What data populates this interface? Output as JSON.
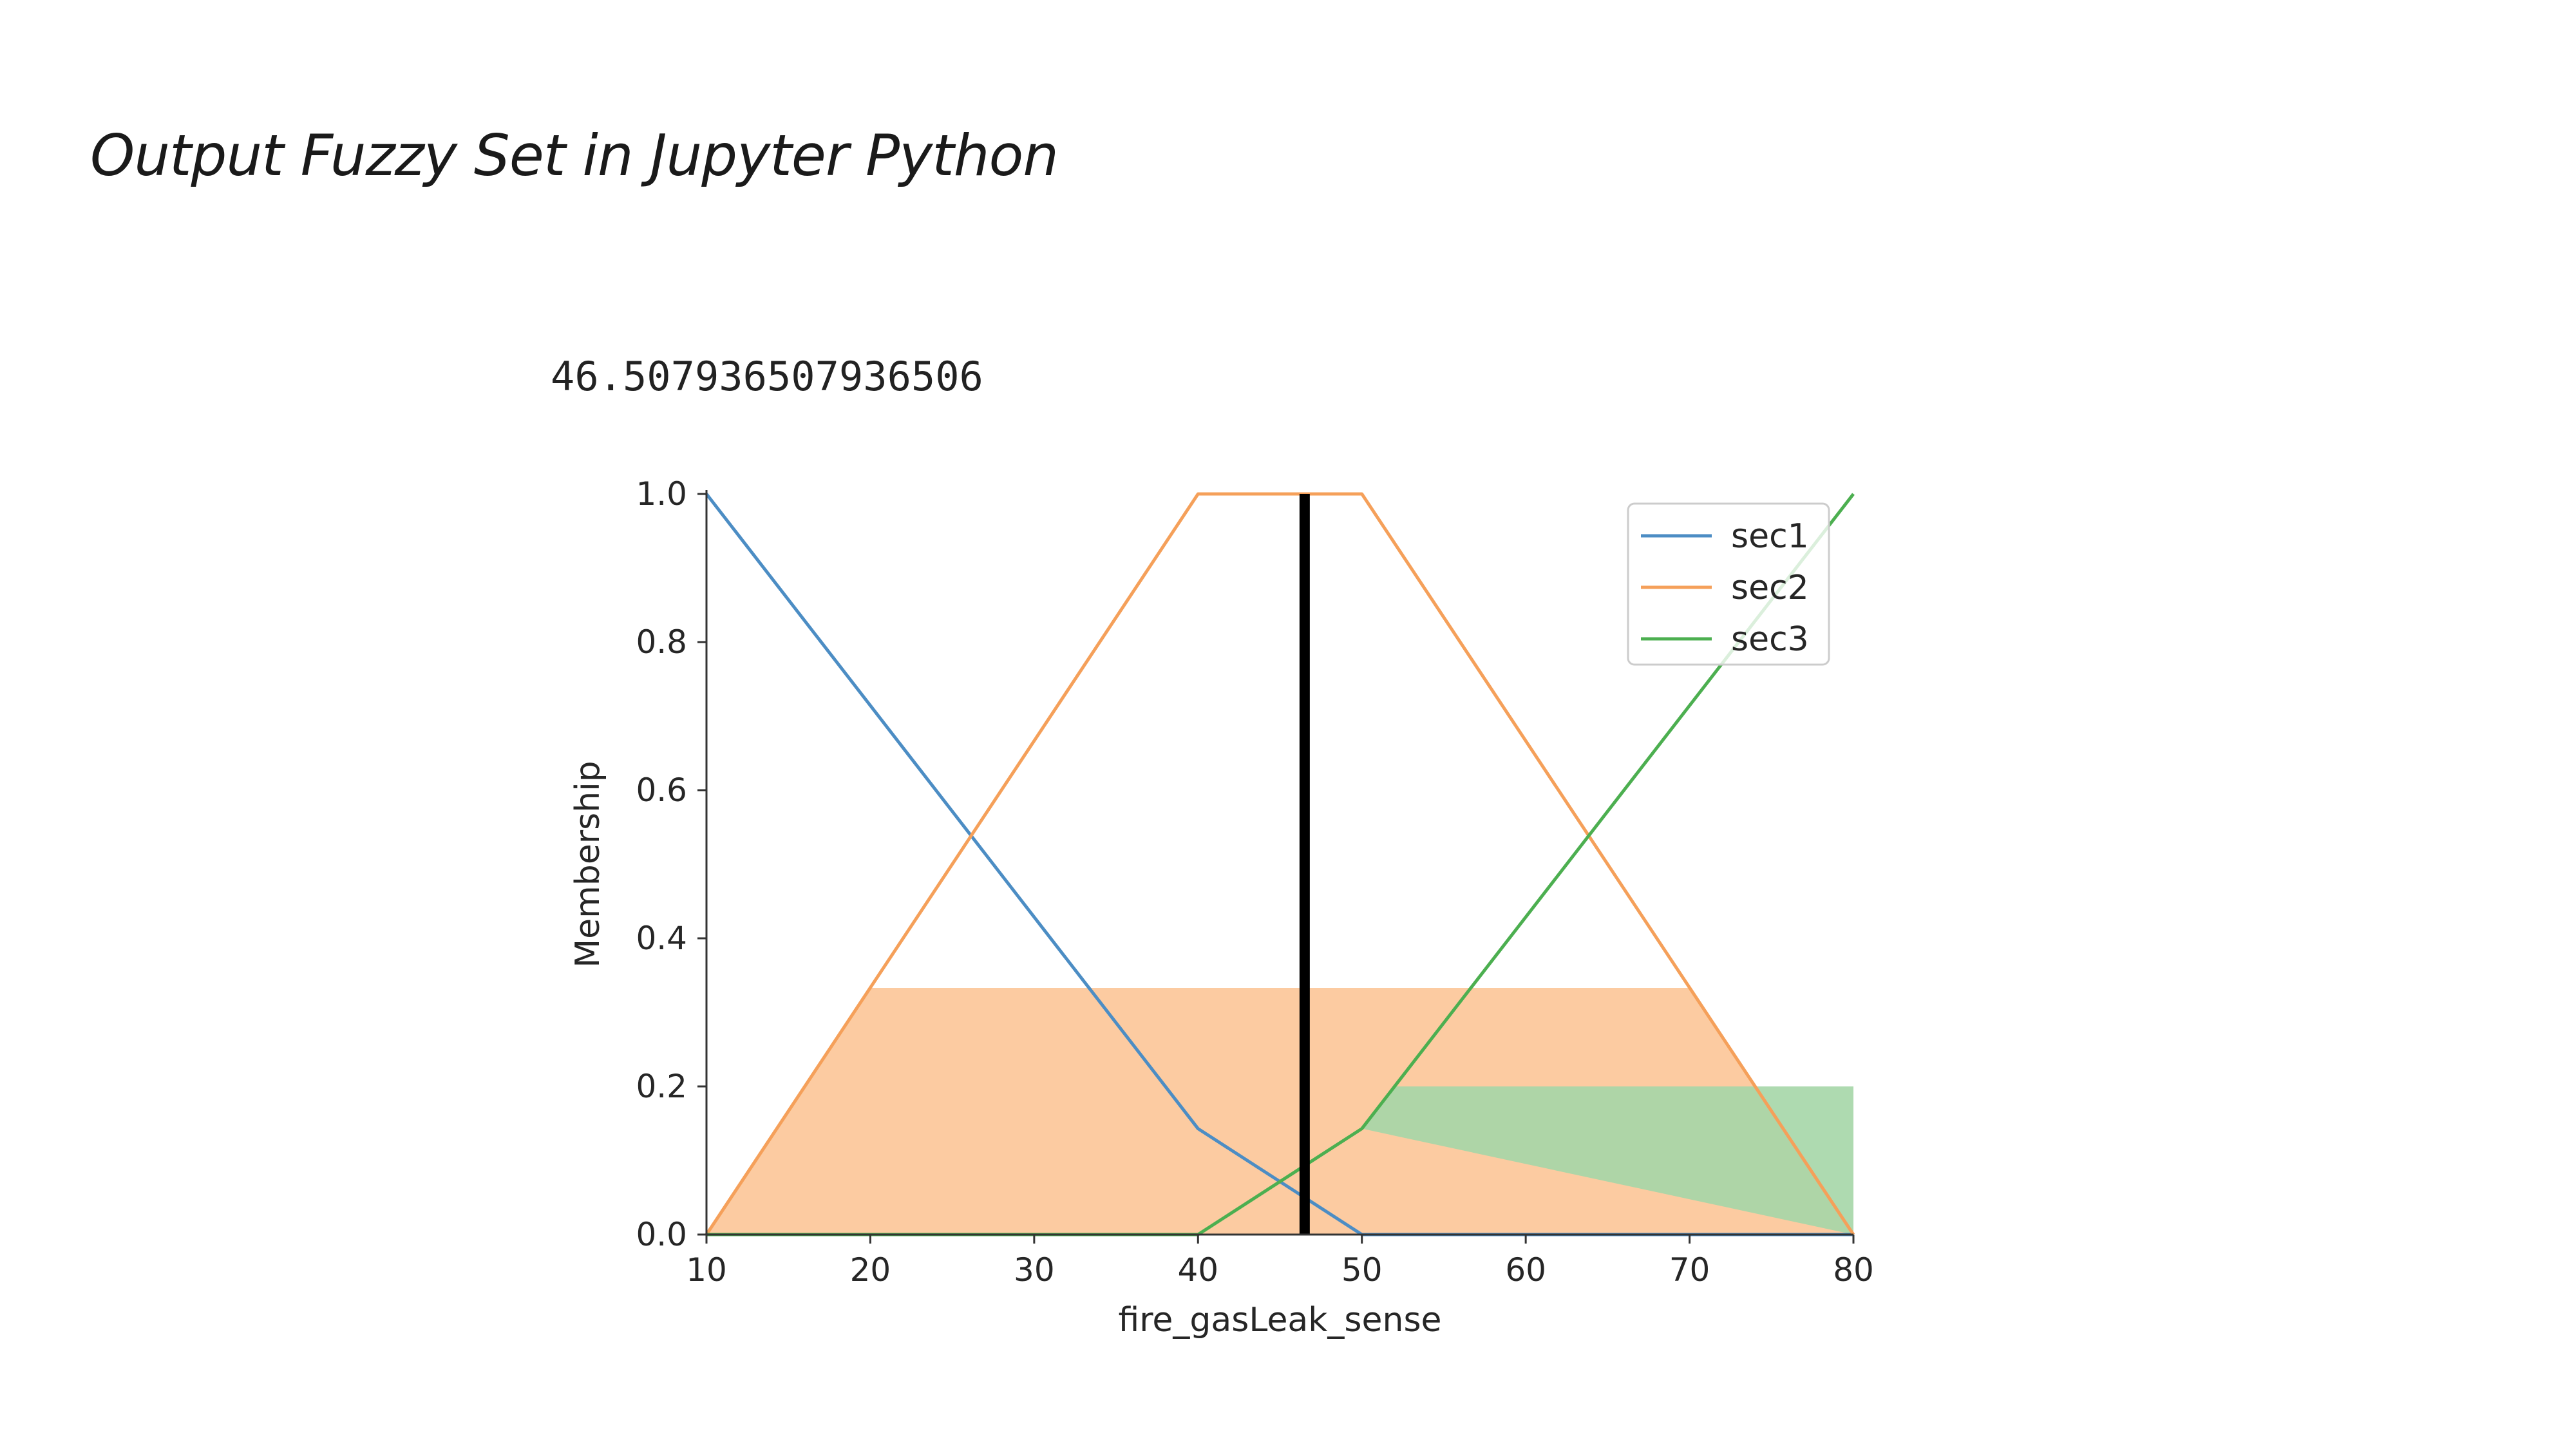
{
  "slide": {
    "title": "Output Fuzzy Set in Jupyter Python"
  },
  "output": {
    "value_text": "46.507936507936506"
  },
  "chart_data": {
    "type": "line",
    "title": "",
    "xlabel": "fire_gasLeak_sense",
    "ylabel": "Membership",
    "xlim": [
      10,
      80
    ],
    "ylim": [
      0,
      1.0
    ],
    "xticks": [
      10,
      20,
      30,
      40,
      50,
      60,
      70,
      80
    ],
    "yticks": [
      "0.0",
      "0.2",
      "0.4",
      "0.6",
      "0.8",
      "1.0"
    ],
    "grid": false,
    "legend_position": "top-right",
    "series": [
      {
        "name": "sec1",
        "color": "#4c8dc4",
        "x": [
          10,
          40,
          50,
          80
        ],
        "y": [
          1.0,
          0.143,
          0.0,
          0.0
        ]
      },
      {
        "name": "sec2",
        "color": "#f5a05a",
        "x": [
          10,
          40,
          50,
          80
        ],
        "y": [
          0.0,
          1.0,
          1.0,
          0.0
        ]
      },
      {
        "name": "sec3",
        "color": "#4caf50",
        "x": [
          10,
          40,
          50,
          80
        ],
        "y": [
          0.0,
          0.0,
          0.143,
          1.0
        ]
      }
    ],
    "activation_fills": [
      {
        "series": "sec2",
        "color": "#fcc597",
        "x": [
          10,
          20,
          70,
          80
        ],
        "y": [
          0.0,
          0.333,
          0.333,
          0.0
        ]
      },
      {
        "series": "sec3",
        "color": "#a5d6a7",
        "x": [
          50,
          52,
          80,
          80
        ],
        "y": [
          0.143,
          0.2,
          0.2,
          0.0
        ]
      }
    ],
    "defuzzified_line": {
      "x": 46.507936507936506,
      "color": "#000000"
    }
  }
}
